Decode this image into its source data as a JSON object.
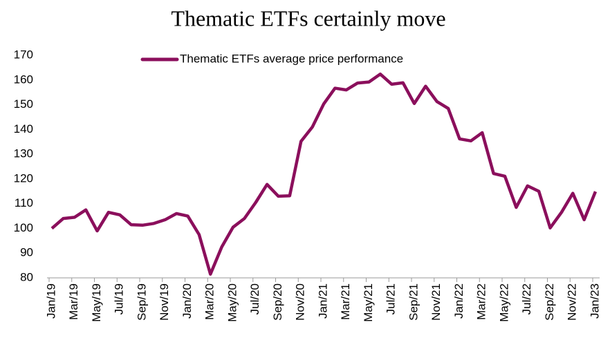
{
  "chart_data": {
    "type": "line",
    "title": "Thematic ETFs certainly move",
    "categories": [
      "Jan/19",
      null,
      "Mar/19",
      null,
      "May/19",
      null,
      "Jul/19",
      null,
      "Sep/19",
      null,
      "Nov/19",
      null,
      "Jan/20",
      null,
      "Mar/20",
      null,
      "May/20",
      null,
      "Jul/20",
      null,
      "Sep/20",
      null,
      "Nov/20",
      null,
      "Jan/21",
      null,
      "Mar/21",
      null,
      "May/21",
      null,
      "Jul/21",
      null,
      "Sep/21",
      null,
      "Nov/21",
      null,
      "Jan/22",
      null,
      "Mar/22",
      null,
      "May/22",
      null,
      "Jul/22",
      null,
      "Sep/22",
      null,
      "Nov/22",
      null,
      "Jan/23"
    ],
    "series": [
      {
        "name": "Thematic ETFs average price performance",
        "color": "#8b0f5c",
        "values": [
          100,
          104,
          104.5,
          107.5,
          99,
          106.5,
          105.5,
          101.5,
          101.3,
          102,
          103.5,
          106,
          105,
          97.5,
          81.5,
          92.5,
          100.5,
          104,
          110.5,
          117.8,
          113,
          113.2,
          135.2,
          141,
          150.3,
          156.7,
          156,
          158.8,
          159.2,
          162.4,
          158.3,
          158.9,
          150.5,
          157.5,
          151.3,
          148.5,
          136.2,
          135.4,
          138.7,
          122.2,
          121.1,
          108.5,
          117.2,
          115,
          100.2,
          106.5,
          114.2,
          103.5,
          114.9
        ]
      }
    ],
    "ylim": [
      80,
      170
    ],
    "yticks": [
      80,
      90,
      100,
      110,
      120,
      130,
      140,
      150,
      160,
      170
    ],
    "legend": "top"
  }
}
